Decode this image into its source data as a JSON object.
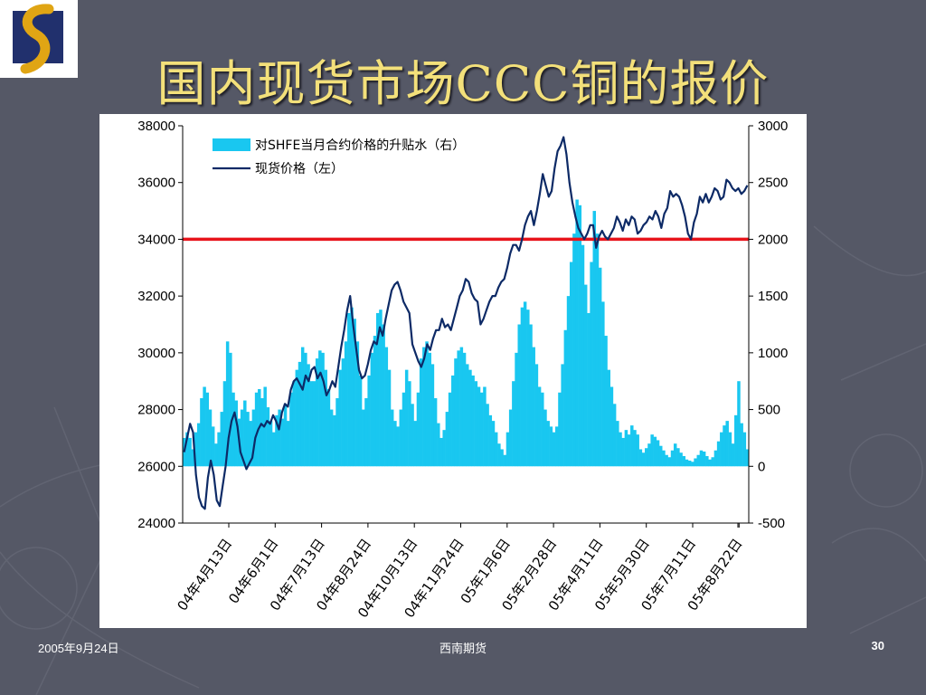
{
  "slide": {
    "title": "国内现货市场CCC铜的报价",
    "footer_date": "2005年9月24日",
    "footer_company": "西南期货",
    "page_number": "30"
  },
  "colors": {
    "background": "#555866",
    "title": "#f3e07a",
    "bars": "#19c7f0",
    "price_line": "#0d2a66",
    "reference_line": "#e8141b",
    "logo_blue": "#21306d",
    "logo_gold": "#e0a514"
  },
  "chart_data": {
    "type": "bar+line",
    "legend": {
      "placement": "top-left",
      "items": [
        "对SHFE当月合约价格的升贴水（右）",
        "现货价格（左）"
      ]
    },
    "y_left": {
      "ylim": [
        24000,
        38000
      ],
      "ticks": [
        "38000",
        "36000",
        "34000",
        "32000",
        "30000",
        "28000",
        "26000",
        "24000"
      ]
    },
    "y_right": {
      "ylim": [
        -500,
        3000
      ],
      "ticks": [
        "3000",
        "2500",
        "2000",
        "1500",
        "1000",
        "500",
        "0",
        "-500"
      ]
    },
    "x_tick_labels": [
      "04年4月13日",
      "04年6月1日",
      "04年7月13日",
      "04年8月24日",
      "04年10月13日",
      "04年11月24日",
      "05年1月6日",
      "05年2月28日",
      "05年4月11日",
      "05年5月30日",
      "05年7月11日",
      "05年8月22日"
    ],
    "reference_line": {
      "axis": "left",
      "value": 34000
    },
    "series": [
      {
        "name": "对SHFE当月合约价格的升贴水（右）",
        "type": "bar",
        "axis": "right",
        "values": [
          250,
          300,
          250,
          150,
          300,
          380,
          600,
          700,
          650,
          500,
          350,
          200,
          300,
          480,
          750,
          1100,
          1000,
          650,
          580,
          420,
          500,
          580,
          480,
          400,
          500,
          650,
          680,
          600,
          700,
          520,
          400,
          300,
          450,
          500,
          420,
          550,
          400,
          650,
          750,
          850,
          920,
          1050,
          1000,
          900,
          750,
          750,
          950,
          1020,
          1000,
          850,
          680,
          500,
          450,
          600,
          850,
          950,
          1100,
          1350,
          1400,
          1300,
          1100,
          800,
          500,
          600,
          800,
          1000,
          1150,
          1350,
          1380,
          1250,
          1050,
          850,
          500,
          400,
          350,
          500,
          650,
          850,
          750,
          550,
          400,
          650,
          950,
          1050,
          1100,
          1000,
          900,
          600,
          380,
          250,
          320,
          480,
          650,
          800,
          950,
          1020,
          1050,
          1000,
          900,
          850,
          800,
          750,
          700,
          650,
          700,
          550,
          450,
          400,
          300,
          200,
          150,
          100,
          300,
          500,
          750,
          1000,
          1250,
          1400,
          1450,
          1380,
          1250,
          1050,
          900,
          700,
          650,
          500,
          400,
          350,
          300,
          350,
          650,
          900,
          1200,
          1500,
          1800,
          2050,
          2350,
          2300,
          1950,
          1600,
          1350,
          1800,
          2250,
          2050,
          1750,
          1450,
          1150,
          850,
          700,
          550,
          400,
          300,
          250,
          320,
          280,
          360,
          320,
          280,
          150,
          120,
          160,
          200,
          280,
          260,
          230,
          180,
          140,
          100,
          80,
          140,
          200,
          160,
          120,
          90,
          60,
          50,
          40,
          70,
          100,
          140,
          130,
          90,
          60,
          80,
          140,
          220,
          300,
          360,
          400,
          300,
          200,
          450,
          750,
          380,
          300,
          150
        ]
      },
      {
        "name": "现货价格（左）",
        "type": "line",
        "axis": "left",
        "values": [
          26500,
          27000,
          27500,
          27200,
          25700,
          24900,
          24600,
          24500,
          25600,
          26200,
          25700,
          24800,
          24600,
          25300,
          26000,
          27000,
          27600,
          27900,
          27400,
          26500,
          26200,
          25900,
          26100,
          26300,
          27000,
          27300,
          27500,
          27400,
          27600,
          27500,
          27800,
          27600,
          27300,
          27900,
          28200,
          28100,
          28700,
          29000,
          29100,
          28900,
          28700,
          29200,
          29000,
          29400,
          29500,
          29100,
          29300,
          29000,
          28500,
          28700,
          29000,
          28800,
          29500,
          30200,
          30800,
          31500,
          32000,
          31000,
          30200,
          29400,
          29100,
          29200,
          29600,
          30100,
          30400,
          30300,
          30900,
          30600,
          31200,
          31700,
          32200,
          32400,
          32500,
          32200,
          31800,
          31600,
          31400,
          30300,
          30000,
          29700,
          29500,
          29800,
          30300,
          30100,
          30500,
          30800,
          30800,
          31200,
          30900,
          31000,
          30800,
          31200,
          31600,
          32000,
          32200,
          32600,
          32500,
          32100,
          31900,
          31800,
          31000,
          31200,
          31500,
          31800,
          32000,
          32000,
          32300,
          32500,
          32600,
          33000,
          33500,
          33800,
          33800,
          33600,
          34000,
          34500,
          34800,
          35000,
          34500,
          35000,
          35600,
          36300,
          35900,
          35500,
          35700,
          36500,
          37100,
          37300,
          37600,
          37000,
          36000,
          35300,
          34800,
          34400,
          34200,
          34000,
          34200,
          34500,
          34500,
          33700,
          34100,
          34300,
          34100,
          34000,
          34200,
          34400,
          34800,
          34600,
          34300,
          34700,
          34500,
          34800,
          34700,
          34200,
          34300,
          34500,
          34600,
          34800,
          34700,
          35000,
          34800,
          34400,
          34900,
          35100,
          35700,
          35500,
          35600,
          35500,
          35200,
          34800,
          34200,
          34000,
          34600,
          34900,
          35500,
          35300,
          35600,
          35300,
          35500,
          35800,
          35700,
          35400,
          35500,
          36100,
          36000,
          35800,
          35700,
          35800,
          35600,
          35700,
          35900
        ]
      }
    ]
  }
}
